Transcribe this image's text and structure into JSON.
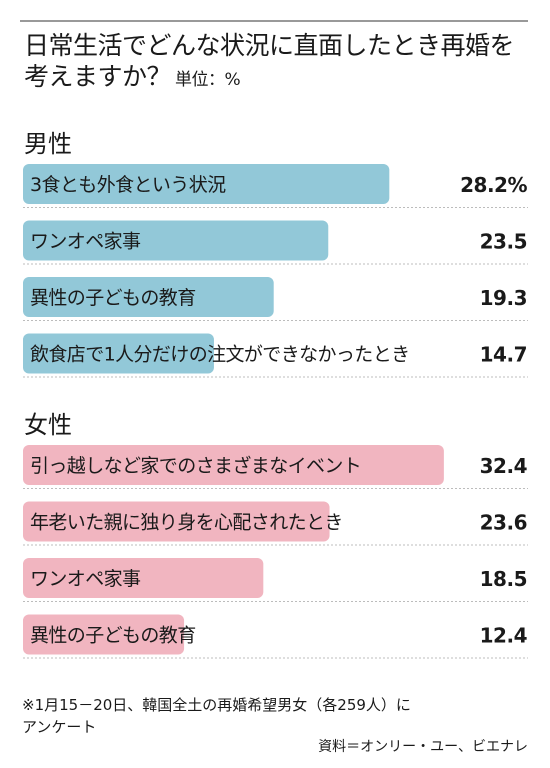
{
  "header": {
    "title_line1": "日常生活でどんな状況に直面したとき再婚を",
    "title_line2": "考えますか？",
    "unit": "単位：%"
  },
  "colors": {
    "male_bar": "#92c8d8",
    "female_bar": "#f1b5c0",
    "divider": "#bcbcbc",
    "topline": "#999999"
  },
  "chart_data": [
    {
      "type": "bar",
      "orientation": "horizontal",
      "title": "男性",
      "unit": "%",
      "xlim": [
        0,
        40
      ],
      "categories": [
        "3食とも外食という状況",
        "ワンオペ家事",
        "異性の子どもの教育",
        "飲食店で1人分だけの注文ができなかったとき"
      ],
      "values": [
        28.2,
        23.5,
        19.3,
        14.7
      ],
      "value_labels": [
        "28.2%",
        "23.5",
        "19.3",
        "14.7"
      ],
      "color": "#92c8d8"
    },
    {
      "type": "bar",
      "orientation": "horizontal",
      "title": "女性",
      "unit": "%",
      "xlim": [
        0,
        40
      ],
      "categories": [
        "引っ越しなど家でのさまざまなイベント",
        "年老いた親に独り身を心配されたとき",
        "ワンオペ家事",
        "異性の子どもの教育"
      ],
      "values": [
        32.4,
        23.6,
        18.5,
        12.4
      ],
      "value_labels": [
        "32.4",
        "23.6",
        "18.5",
        "12.4"
      ],
      "color": "#f1b5c0"
    }
  ],
  "footer": {
    "note_line1": "※1月15－20日、韓国全土の再婚希望男女（各259人）に",
    "note_line2": "アンケート",
    "source": "資料＝オンリー・ユー、ビエナレ"
  }
}
